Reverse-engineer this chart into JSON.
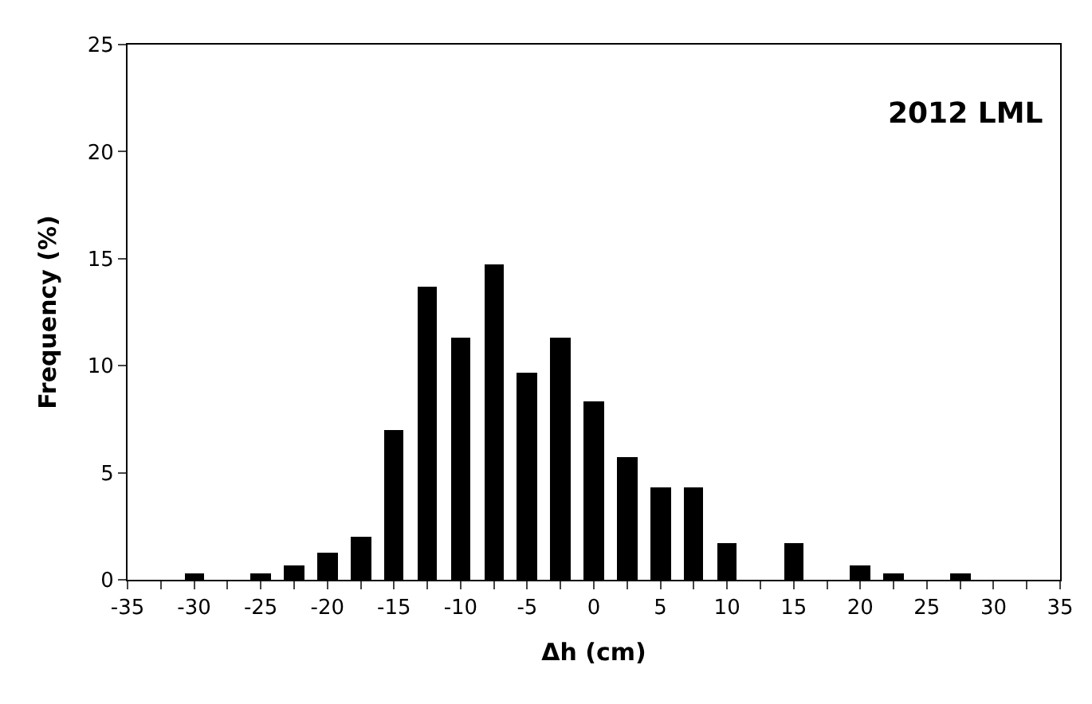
{
  "chart_data": {
    "type": "histogram",
    "title": "2012 LML",
    "xlabel": "Δh (cm)",
    "ylabel": "Frequency (%)",
    "bins": [
      -31.25,
      -28.75,
      -26.25,
      -23.75,
      -21.25,
      -18.75,
      -16.25,
      -13.75,
      -11.25,
      -8.75,
      -6.25,
      -3.75,
      -1.25,
      1.25,
      3.75,
      6.25,
      8.75,
      11.25,
      13.75,
      16.25,
      18.75,
      21.25,
      23.75,
      26.25,
      28.75
    ],
    "values": [
      0.3,
      0,
      0.3,
      0.7,
      1.3,
      2.0,
      7.0,
      13.7,
      11.3,
      14.7,
      9.7,
      11.3,
      8.3,
      5.7,
      4.3,
      4.3,
      1.7,
      0,
      1.7,
      0,
      0.7,
      0.3,
      0,
      0.3
    ],
    "color": "#000000",
    "xlim": [
      -35,
      35
    ],
    "xticks": [
      -35,
      {
        "value": -32.5,
        "label": null
      },
      -30,
      {
        "value": -27.5,
        "label": null
      },
      -25,
      {
        "value": -22.5,
        "label": null
      },
      -20,
      {
        "value": -17.5,
        "label": null
      },
      -15,
      {
        "value": -12.5,
        "label": null
      },
      -10,
      {
        "value": -7.5,
        "label": null
      },
      -5,
      {
        "value": -2.5,
        "label": null
      },
      0,
      {
        "value": 2.5,
        "label": null
      },
      5,
      {
        "value": 7.5,
        "label": null
      },
      10,
      {
        "value": 12.5,
        "label": null
      },
      15,
      {
        "value": 17.5,
        "label": null
      },
      20,
      {
        "value": 22.5,
        "label": null
      },
      25,
      {
        "value": 27.5,
        "label": null
      },
      30,
      {
        "value": 32.5,
        "label": null
      },
      35
    ],
    "ylim": [
      0,
      25
    ],
    "yticks": [
      0,
      5,
      10,
      15,
      20,
      25
    ]
  }
}
